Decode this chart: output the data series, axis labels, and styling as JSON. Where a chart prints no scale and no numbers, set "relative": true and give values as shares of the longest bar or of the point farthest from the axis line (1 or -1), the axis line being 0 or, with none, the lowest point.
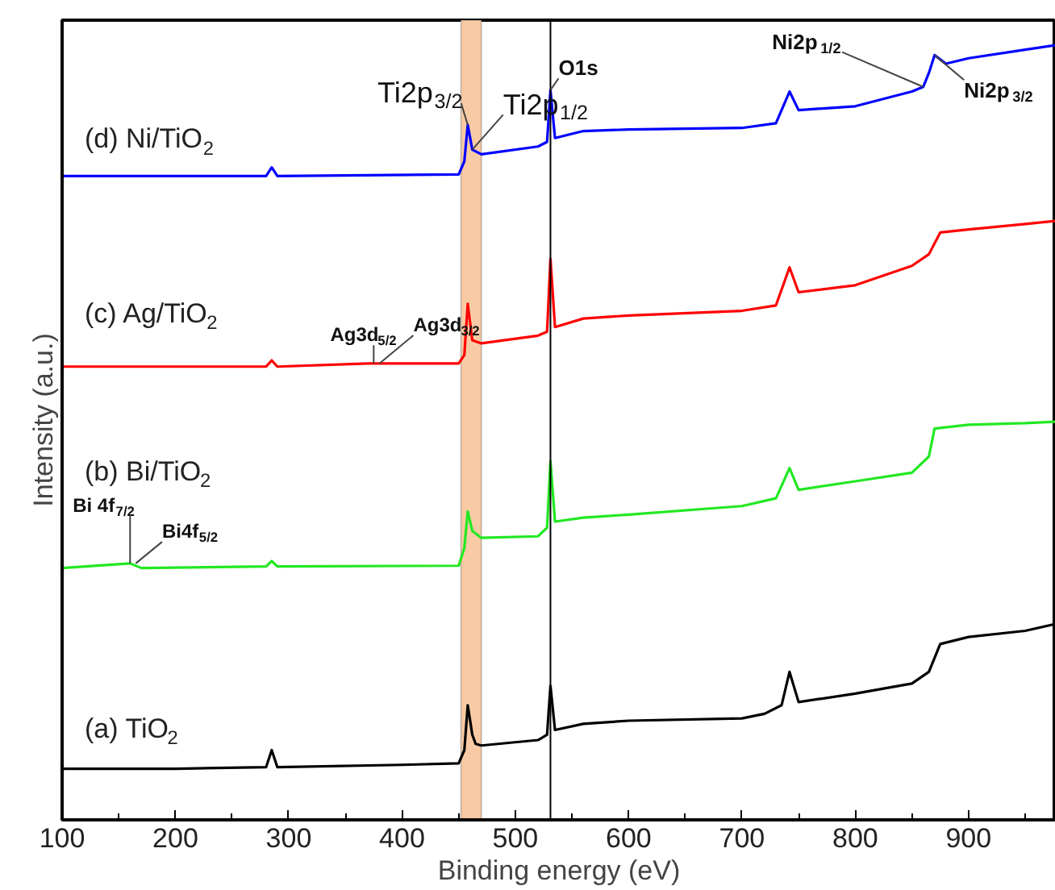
{
  "chart_data": {
    "type": "line",
    "relative": true,
    "xlabel": "Binding energy (eV)",
    "ylabel": "Intensity (a.u.)",
    "xlim": [
      100,
      977
    ],
    "xticks": [
      100,
      200,
      300,
      400,
      500,
      600,
      700,
      800,
      900
    ],
    "grid": false,
    "series": [
      {
        "name": "(d) Ni/TiO$_{2}$",
        "color": "#0000ff",
        "x": [
          100,
          280,
          285,
          290,
          450,
          455,
          458,
          462,
          470,
          520,
          528,
          531,
          535,
          560,
          600,
          700,
          730,
          742,
          750,
          800,
          850,
          860,
          865,
          870,
          880,
          900,
          950,
          977
        ],
        "values": [
          0.831,
          0.831,
          0.842,
          0.831,
          0.833,
          0.85,
          0.897,
          0.865,
          0.859,
          0.869,
          0.875,
          0.942,
          0.88,
          0.889,
          0.891,
          0.893,
          0.899,
          0.94,
          0.916,
          0.921,
          0.94,
          0.946,
          0.964,
          0.987,
          0.976,
          0.983,
          0.994,
          1.0
        ]
      },
      {
        "name": "(c) Ag/TiO$_{2}$",
        "color": "#ff0000",
        "x": [
          100,
          280,
          285,
          290,
          370,
          450,
          455,
          458,
          462,
          470,
          520,
          528,
          531,
          535,
          560,
          600,
          700,
          730,
          742,
          750,
          800,
          850,
          865,
          875,
          900,
          950,
          977
        ],
        "values": [
          0.585,
          0.585,
          0.593,
          0.585,
          0.589,
          0.589,
          0.6,
          0.666,
          0.619,
          0.615,
          0.625,
          0.63,
          0.724,
          0.636,
          0.647,
          0.651,
          0.657,
          0.664,
          0.713,
          0.681,
          0.69,
          0.715,
          0.73,
          0.758,
          0.762,
          0.769,
          0.773
        ]
      },
      {
        "name": "(b) Bi/TiO$_{2}$",
        "color": "#22e822",
        "x": [
          100,
          160,
          170,
          280,
          285,
          290,
          450,
          455,
          458,
          462,
          470,
          520,
          528,
          531,
          535,
          560,
          600,
          700,
          730,
          742,
          750,
          800,
          850,
          865,
          870,
          900,
          950,
          977
        ],
        "values": [
          0.325,
          0.331,
          0.325,
          0.327,
          0.334,
          0.327,
          0.328,
          0.351,
          0.398,
          0.373,
          0.364,
          0.366,
          0.377,
          0.463,
          0.385,
          0.39,
          0.394,
          0.405,
          0.415,
          0.454,
          0.426,
          0.437,
          0.448,
          0.469,
          0.505,
          0.51,
          0.512,
          0.514
        ]
      },
      {
        "name": "(a) TiO$_{2}$",
        "color": "#000000",
        "x": [
          100,
          200,
          280,
          285,
          290,
          400,
          450,
          455,
          458,
          462,
          465,
          470,
          520,
          528,
          531,
          535,
          560,
          600,
          700,
          720,
          735,
          742,
          750,
          800,
          850,
          865,
          875,
          900,
          950,
          977
        ],
        "values": [
          0.066,
          0.066,
          0.068,
          0.09,
          0.068,
          0.071,
          0.073,
          0.09,
          0.148,
          0.11,
          0.098,
          0.096,
          0.103,
          0.11,
          0.173,
          0.116,
          0.124,
          0.128,
          0.131,
          0.137,
          0.148,
          0.191,
          0.152,
          0.163,
          0.176,
          0.191,
          0.227,
          0.236,
          0.244,
          0.253
        ]
      }
    ],
    "bands": [
      {
        "axis": "x",
        "from": 452,
        "to": 470,
        "color": "#f9cba5"
      }
    ],
    "ref_lines": [
      {
        "axis": "x",
        "value": 531,
        "color": "#000000"
      }
    ],
    "annotations": [
      {
        "text": "Ti2p$_{3/2}$",
        "x": 458,
        "y": 0.897
      },
      {
        "text": "Ti2p$_{1/2}$",
        "x": 462,
        "y": 0.865
      },
      {
        "text": "O1s",
        "x": 531,
        "y": 0.942
      },
      {
        "text": "Ni2p$_{1/2}$",
        "x": 860,
        "y": 0.946
      },
      {
        "text": "Ni2p$_{3/2}$",
        "x": 870,
        "y": 0.987
      },
      {
        "text": "Ag3d$_{5/2}$",
        "x": 375,
        "y": 0.589
      },
      {
        "text": "Ag3d$_{3/2}$",
        "x": 380,
        "y": 0.589
      },
      {
        "text": "Bi 4f$_{7/2}$",
        "x": 160,
        "y": 0.331
      },
      {
        "text": "Bi4f$_{5/2}$",
        "x": 165,
        "y": 0.331
      }
    ]
  }
}
